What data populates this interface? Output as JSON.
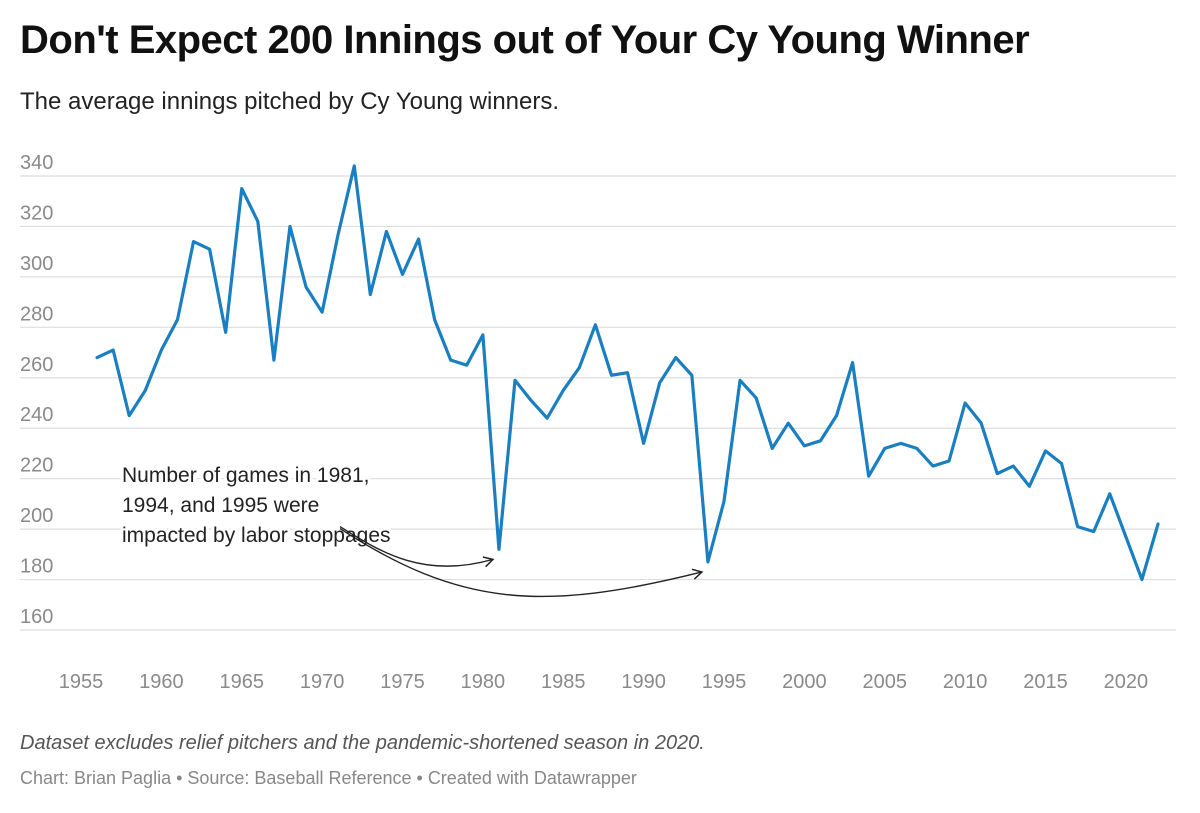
{
  "header": {
    "title": "Don't Expect 200 Innings out of Your Cy Young Winner",
    "subtitle": "The average innings pitched by Cy Young winners."
  },
  "footer": {
    "notes": "Dataset excludes relief pitchers and the pandemic-shortened season in 2020.",
    "byline": "Chart: Brian Paglia • Source: Baseball Reference • Created with Datawrapper"
  },
  "chart_data": {
    "type": "line",
    "title": "Don't Expect 200 Innings out of Your Cy Young Winner",
    "subtitle": "The average innings pitched by Cy Young winners.",
    "xlabel": "",
    "ylabel": "",
    "xlim": [
      1955,
      2022
    ],
    "ylim": [
      160,
      345
    ],
    "x_ticks": [
      1955,
      1960,
      1965,
      1970,
      1975,
      1980,
      1985,
      1990,
      1995,
      2000,
      2005,
      2010,
      2015,
      2020
    ],
    "y_ticks": [
      160,
      180,
      200,
      220,
      240,
      260,
      280,
      300,
      320,
      340
    ],
    "grid": "horizontal",
    "line_color": "#1a7fc1",
    "series": [
      {
        "x": [
          1956,
          1957,
          1958,
          1959,
          1960,
          1961,
          1962,
          1963,
          1964,
          1965,
          1966,
          1967,
          1968,
          1969,
          1970,
          1971,
          1972,
          1973,
          1974,
          1975,
          1976,
          1977,
          1978,
          1979,
          1980,
          1981,
          1982,
          1983,
          1984,
          1985,
          1986,
          1987,
          1988,
          1989,
          1990,
          1991,
          1992,
          1993,
          1994,
          1995,
          1996,
          1997,
          1998,
          1999,
          2000,
          2001,
          2002,
          2003,
          2004,
          2005,
          2006,
          2007,
          2008,
          2009,
          2010,
          2011,
          2012,
          2013,
          2014,
          2015,
          2016,
          2017,
          2018,
          2019,
          2021,
          2022
        ],
        "values": [
          268,
          271,
          245,
          255,
          271,
          283,
          314,
          311,
          278,
          335,
          322,
          267,
          320,
          296,
          286,
          317,
          344,
          293,
          318,
          301,
          315,
          283,
          267,
          265,
          277,
          192,
          259,
          251,
          244,
          255,
          264,
          281,
          261,
          262,
          234,
          258,
          268,
          261,
          187,
          211,
          259,
          252,
          232,
          242,
          233,
          235,
          245,
          266,
          221,
          232,
          234,
          232,
          225,
          227,
          250,
          242,
          222,
          225,
          217,
          231,
          226,
          201,
          199,
          214,
          180,
          202
        ]
      }
    ],
    "annotations": [
      {
        "text": [
          "Number of games in 1981,",
          "1994, and 1995 were",
          "impacted by labor stoppages"
        ],
        "arrows_to": [
          {
            "x": 1981,
            "y": 188
          },
          {
            "x": 1994,
            "y": 183
          }
        ]
      }
    ]
  }
}
